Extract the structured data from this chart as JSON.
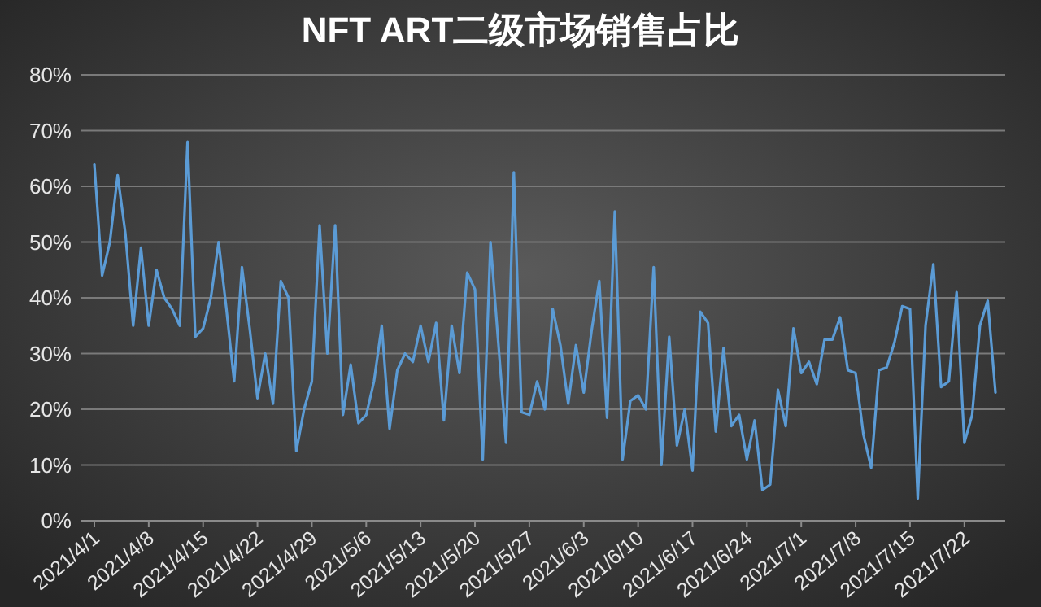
{
  "chart_data": {
    "type": "line",
    "title": "NFT ART二级市场销售占比",
    "categories": [
      "2021/4/1",
      null,
      null,
      null,
      null,
      null,
      null,
      "2021/4/8",
      null,
      null,
      null,
      null,
      null,
      null,
      "2021/4/15",
      null,
      null,
      null,
      null,
      null,
      null,
      "2021/4/22",
      null,
      null,
      null,
      null,
      null,
      null,
      "2021/4/29",
      null,
      null,
      null,
      null,
      null,
      null,
      "2021/5/6",
      null,
      null,
      null,
      null,
      null,
      null,
      "2021/5/13",
      null,
      null,
      null,
      null,
      null,
      null,
      "2021/5/20",
      null,
      null,
      null,
      null,
      null,
      null,
      "2021/5/27",
      null,
      null,
      null,
      null,
      null,
      null,
      "2021/6/3",
      null,
      null,
      null,
      null,
      null,
      null,
      "2021/6/10",
      null,
      null,
      null,
      null,
      null,
      null,
      "2021/6/17",
      null,
      null,
      null,
      null,
      null,
      null,
      "2021/6/24",
      null,
      null,
      null,
      null,
      null,
      null,
      "2021/7/1",
      null,
      null,
      null,
      null,
      null,
      null,
      "2021/7/8",
      null,
      null,
      null,
      null,
      null,
      null,
      "2021/7/15",
      null,
      null,
      null,
      null,
      null,
      null,
      "2021/7/22",
      null,
      null,
      null,
      null
    ],
    "series": [
      {
        "color": "#5b9bd5",
        "values": [
          64,
          44,
          50,
          62,
          51.5,
          35,
          49,
          35,
          45,
          40,
          38,
          35,
          68,
          33,
          34.5,
          40,
          50,
          38,
          25,
          45.5,
          34.5,
          22,
          30,
          21,
          43,
          40,
          12.5,
          20,
          25,
          53,
          30,
          53,
          19,
          28,
          17.5,
          19,
          25,
          35,
          16.5,
          27,
          30,
          28.5,
          35,
          28.5,
          35.5,
          18,
          35,
          26.5,
          44.5,
          41.5,
          11,
          50,
          32,
          14,
          62.5,
          19.5,
          19,
          25,
          20,
          38,
          31.5,
          21,
          31.5,
          23,
          34,
          43,
          18.5,
          55.5,
          11,
          21.5,
          22.5,
          20,
          45.5,
          10,
          33,
          13.5,
          20,
          9,
          37.5,
          35.5,
          16,
          31,
          17,
          19,
          11,
          18,
          5.5,
          6.5,
          23.5,
          17,
          34.5,
          26.5,
          28.5,
          24.5,
          32.5,
          32.5,
          36.5,
          27,
          26.5,
          15.5,
          9.5,
          27,
          27.5,
          32,
          38.5,
          38,
          4,
          35,
          46,
          24,
          25,
          41,
          14,
          19,
          35,
          39.5,
          23
        ]
      }
    ],
    "ylim": [
      0,
      80
    ],
    "yticks": [
      {
        "value": 0,
        "label": "0%"
      },
      {
        "value": 10,
        "label": "10%"
      },
      {
        "value": 20,
        "label": "20%"
      },
      {
        "value": 30,
        "label": "30%"
      },
      {
        "value": 40,
        "label": "40%"
      },
      {
        "value": 50,
        "label": "50%"
      },
      {
        "value": 60,
        "label": "60%"
      },
      {
        "value": 70,
        "label": "70%"
      },
      {
        "value": 80,
        "label": "80%"
      }
    ],
    "grid": "y",
    "marker": "none",
    "line_style": "solid"
  }
}
